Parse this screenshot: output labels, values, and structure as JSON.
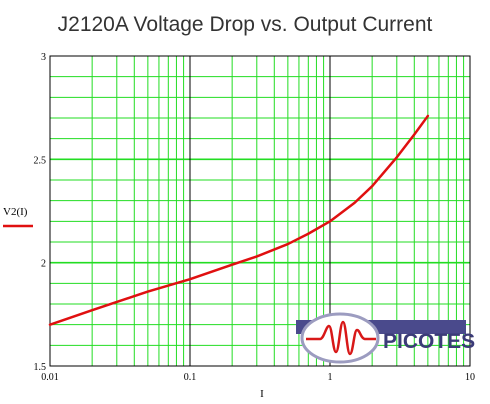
{
  "chart_data": {
    "type": "line",
    "title": "J2120A Voltage Drop vs. Output Current",
    "xlabel": "I",
    "ylabel": "V2(I)",
    "x_scale": "log",
    "xlim": [
      0.01,
      10
    ],
    "ylim": [
      1.5,
      3
    ],
    "x_ticks": [
      "0.01",
      "0.1",
      "1",
      "10"
    ],
    "y_ticks": [
      "1.5",
      "2",
      "2.5",
      "3"
    ],
    "grid": true,
    "legend": "left",
    "series": [
      {
        "name": "V2(I)",
        "color": "#e01010",
        "x": [
          0.01,
          0.02,
          0.05,
          0.1,
          0.2,
          0.3,
          0.5,
          0.7,
          1.0,
          1.5,
          2.0,
          3.0,
          4.0,
          5.0
        ],
        "y": [
          1.7,
          1.77,
          1.86,
          1.92,
          1.99,
          2.03,
          2.09,
          2.14,
          2.2,
          2.29,
          2.37,
          2.51,
          2.62,
          2.71
        ]
      }
    ]
  },
  "logo": {
    "text": "PICOTES",
    "colors": {
      "ring": "#9c9cc0",
      "wave": "#d81818",
      "text": "#3b3b78",
      "fill": "#4a4a8c"
    }
  },
  "colors": {
    "grid": "#22dd22",
    "major_grid": "#000000",
    "frame": "#000000"
  }
}
